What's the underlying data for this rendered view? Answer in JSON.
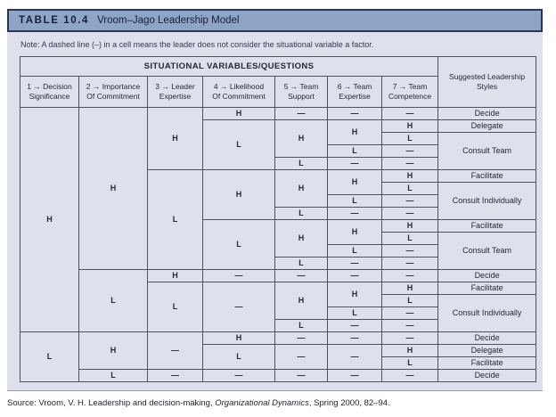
{
  "figure": {
    "label": "TABLE 10.4",
    "title": "Vroom–Jago Leadership Model",
    "note": "Note: A dashed line (–) in a cell means the leader does not consider the situational variable a factor."
  },
  "matrix": {
    "group_header": "SITUATIONAL VARIABLES/QUESTIONS",
    "styles_header": "Suggested Leadership\nStyles",
    "columns": [
      "1 → Decision\nSignificance",
      "2 → Importance\nOf Commitment",
      "3 → Leader\nExpertise",
      "4 → Likelihood\nOf Commitment",
      "5 → Team\nSupport",
      "6 → Team\nExpertise",
      "7 → Team\nCompetence"
    ],
    "rows": [
      [
        {
          "c": 1,
          "v": "H",
          "rs": 18
        },
        {
          "c": 2,
          "v": "H",
          "rs": 13
        },
        {
          "c": 3,
          "v": "H",
          "rs": 5
        },
        {
          "c": 4,
          "v": "H"
        },
        {
          "c": 5,
          "v": "—"
        },
        {
          "c": 6,
          "v": "—"
        },
        {
          "c": 7,
          "v": "—"
        },
        {
          "c": 8,
          "v": "Decide"
        }
      ],
      [
        {
          "c": 4,
          "v": "L",
          "rs": 4
        },
        {
          "c": 5,
          "v": "H",
          "rs": 3
        },
        {
          "c": 6,
          "v": "H",
          "rs": 2
        },
        {
          "c": 7,
          "v": "H"
        },
        {
          "c": 8,
          "v": "Delegate"
        }
      ],
      [
        {
          "c": 7,
          "v": "L"
        },
        {
          "c": 8,
          "v": "Consult Team",
          "rs": 3
        }
      ],
      [
        {
          "c": 6,
          "v": "L"
        },
        {
          "c": 7,
          "v": "—"
        }
      ],
      [
        {
          "c": 5,
          "v": "L"
        },
        {
          "c": 6,
          "v": "—"
        },
        {
          "c": 7,
          "v": "—"
        }
      ],
      [
        {
          "c": 3,
          "v": "L",
          "rs": 8
        },
        {
          "c": 4,
          "v": "H",
          "rs": 4
        },
        {
          "c": 5,
          "v": "H",
          "rs": 3
        },
        {
          "c": 6,
          "v": "H",
          "rs": 2
        },
        {
          "c": 7,
          "v": "H"
        },
        {
          "c": 8,
          "v": "Facilitate"
        }
      ],
      [
        {
          "c": 7,
          "v": "L"
        },
        {
          "c": 8,
          "v": "Consult Individually",
          "rs": 3
        }
      ],
      [
        {
          "c": 6,
          "v": "L"
        },
        {
          "c": 7,
          "v": "—"
        }
      ],
      [
        {
          "c": 5,
          "v": "L"
        },
        {
          "c": 6,
          "v": "—"
        },
        {
          "c": 7,
          "v": "—"
        }
      ],
      [
        {
          "c": 4,
          "v": "L",
          "rs": 4
        },
        {
          "c": 5,
          "v": "H",
          "rs": 3
        },
        {
          "c": 6,
          "v": "H",
          "rs": 2
        },
        {
          "c": 7,
          "v": "H"
        },
        {
          "c": 8,
          "v": "Facilitate"
        }
      ],
      [
        {
          "c": 7,
          "v": "L"
        },
        {
          "c": 8,
          "v": "Consult Team",
          "rs": 3
        }
      ],
      [
        {
          "c": 6,
          "v": "L"
        },
        {
          "c": 7,
          "v": "—"
        }
      ],
      [
        {
          "c": 5,
          "v": "L"
        },
        {
          "c": 6,
          "v": "—"
        },
        {
          "c": 7,
          "v": "—"
        }
      ],
      [
        {
          "c": 2,
          "v": "L",
          "rs": 5
        },
        {
          "c": 3,
          "v": "H"
        },
        {
          "c": 4,
          "v": "—"
        },
        {
          "c": 5,
          "v": "—"
        },
        {
          "c": 6,
          "v": "—"
        },
        {
          "c": 7,
          "v": "—"
        },
        {
          "c": 8,
          "v": "Decide"
        }
      ],
      [
        {
          "c": 3,
          "v": "L",
          "rs": 4
        },
        {
          "c": 4,
          "v": "—",
          "rs": 4
        },
        {
          "c": 5,
          "v": "H",
          "rs": 3
        },
        {
          "c": 6,
          "v": "H",
          "rs": 2
        },
        {
          "c": 7,
          "v": "H"
        },
        {
          "c": 8,
          "v": "Facilitate"
        }
      ],
      [
        {
          "c": 7,
          "v": "L"
        },
        {
          "c": 8,
          "v": "Consult Individually",
          "rs": 3
        }
      ],
      [
        {
          "c": 6,
          "v": "L"
        },
        {
          "c": 7,
          "v": "—"
        }
      ],
      [
        {
          "c": 5,
          "v": "L"
        },
        {
          "c": 6,
          "v": "—"
        },
        {
          "c": 7,
          "v": "—"
        }
      ],
      [
        {
          "c": 1,
          "v": "L",
          "rs": 4
        },
        {
          "c": 2,
          "v": "H",
          "rs": 3
        },
        {
          "c": 3,
          "v": "—",
          "rs": 3
        },
        {
          "c": 4,
          "v": "H"
        },
        {
          "c": 5,
          "v": "—"
        },
        {
          "c": 6,
          "v": "—"
        },
        {
          "c": 7,
          "v": "—"
        },
        {
          "c": 8,
          "v": "Decide"
        }
      ],
      [
        {
          "c": 4,
          "v": "L",
          "rs": 2
        },
        {
          "c": 5,
          "v": "—",
          "rs": 2
        },
        {
          "c": 6,
          "v": "—",
          "rs": 2
        },
        {
          "c": 7,
          "v": "H"
        },
        {
          "c": 8,
          "v": "Delegate"
        }
      ],
      [
        {
          "c": 7,
          "v": "L"
        },
        {
          "c": 8,
          "v": "Facilitate"
        }
      ],
      [
        {
          "c": 2,
          "v": "L"
        },
        {
          "c": 3,
          "v": "—"
        },
        {
          "c": 4,
          "v": "—"
        },
        {
          "c": 5,
          "v": "—"
        },
        {
          "c": 6,
          "v": "—"
        },
        {
          "c": 7,
          "v": "—"
        },
        {
          "c": 8,
          "v": "Decide"
        }
      ]
    ]
  },
  "source": {
    "pre": "Source: Vroom, V. H. Leadership and decision-making, ",
    "italic": "Organizational Dynamics",
    "post": ", Spring 2000, 82–94."
  },
  "colors": {
    "header_bar": "#8fa5c8",
    "panel_bg": "#dee1eb",
    "grid_line": "#4f515e",
    "title_text": "#16203c",
    "title_border": "#2c3654"
  }
}
